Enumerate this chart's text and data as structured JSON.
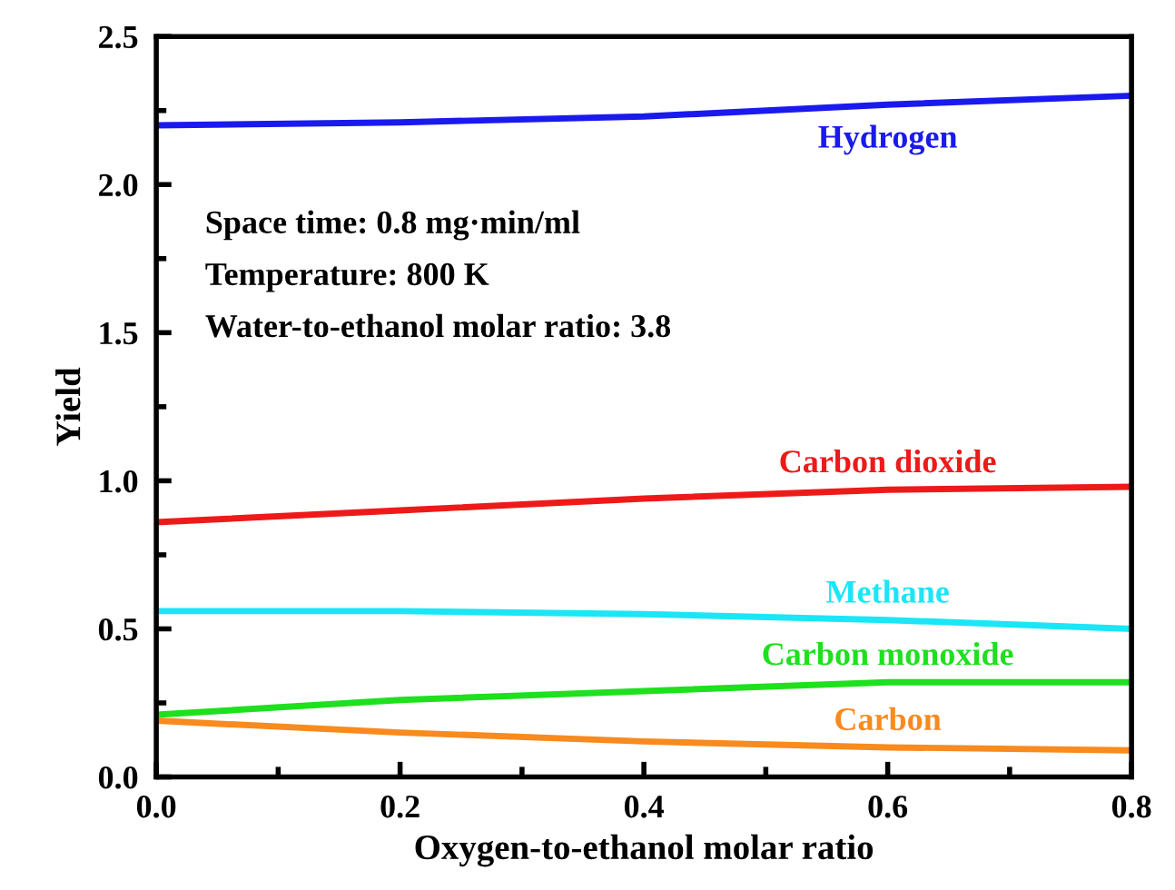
{
  "chart_data": {
    "type": "line",
    "xlabel": "Oxygen-to-ethanol molar ratio",
    "ylabel": "Yield",
    "x": [
      0.0,
      0.2,
      0.4,
      0.6,
      0.8
    ],
    "series": [
      {
        "name": "Hydrogen",
        "color": "#1a1aee",
        "values": [
          2.2,
          2.21,
          2.23,
          2.27,
          2.3
        ]
      },
      {
        "name": "Carbon dioxide",
        "color": "#ee1a1a",
        "values": [
          0.86,
          0.9,
          0.94,
          0.97,
          0.98
        ]
      },
      {
        "name": "Methane",
        "color": "#1ae6f6",
        "values": [
          0.56,
          0.56,
          0.55,
          0.53,
          0.5
        ]
      },
      {
        "name": "Carbon monoxide",
        "color": "#1ee01e",
        "values": [
          0.21,
          0.26,
          0.29,
          0.32,
          0.32
        ]
      },
      {
        "name": "Carbon",
        "color": "#f88a1e",
        "values": [
          0.19,
          0.15,
          0.12,
          0.1,
          0.09
        ]
      }
    ],
    "xlim": [
      0.0,
      0.8
    ],
    "xticks": [
      {
        "value": 0,
        "label": "0.0"
      },
      0.2,
      0.4,
      0.6,
      0.8
    ],
    "ylim": [
      0.0,
      2.5
    ],
    "yticks": [
      {
        "value": 0,
        "label": "0.0"
      },
      0.5,
      {
        "value": 1,
        "label": "1.0"
      },
      1.5,
      {
        "value": 2,
        "label": "2.0"
      },
      2.5
    ],
    "annotations": [
      "Space time: 0.8 mg·min/ml",
      "Temperature: 800 K",
      "Water-to-ethanol molar ratio: 3.8"
    ],
    "grid": false,
    "legend": false,
    "marker": "none",
    "line_style": "solid"
  }
}
